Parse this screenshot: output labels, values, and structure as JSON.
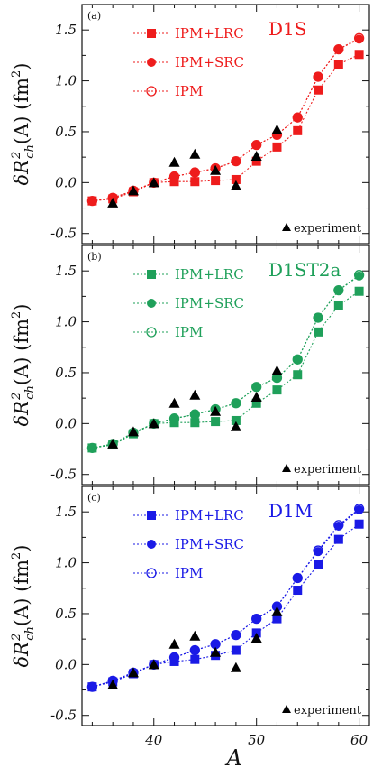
{
  "chart_data": {
    "type": "line",
    "xlabel": "A",
    "ylabel": "δR²ch(A) (fm²)",
    "ylabel_parts": {
      "delta": "δ",
      "r": "R",
      "sup": "2",
      "sub": "ch",
      "rest": "(A) (fm",
      "sup2": "2",
      "close": ")"
    },
    "xlim": [
      33,
      61
    ],
    "ylim": [
      -0.6,
      1.75
    ],
    "x_ticks": [
      40,
      50,
      60
    ],
    "y_ticks": [
      -0.5,
      0.0,
      0.5,
      1.0,
      1.5
    ],
    "y_tick_labels": [
      "-0.5",
      "0.0",
      "0.5",
      "1.0",
      "1.5"
    ],
    "experiment_label": "experiment",
    "experiment": {
      "x": [
        36,
        38,
        40,
        42,
        44,
        46,
        48,
        50,
        52
      ],
      "y": [
        -0.2,
        -0.08,
        0.0,
        0.2,
        0.28,
        0.12,
        -0.03,
        0.26,
        0.52
      ]
    },
    "panels": [
      {
        "tag": "(a)",
        "model": "D1S",
        "color": "#ee1c1c",
        "x": [
          34,
          36,
          38,
          40,
          42,
          44,
          46,
          48,
          50,
          52,
          54,
          56,
          58,
          60
        ],
        "series": [
          {
            "name": "IPM+LRC",
            "marker": "square",
            "values": [
              -0.18,
              -0.16,
              -0.09,
              0.0,
              0.01,
              0.01,
              0.02,
              0.03,
              0.21,
              0.35,
              0.51,
              0.91,
              1.16,
              1.26
            ]
          },
          {
            "name": "IPM+SRC",
            "marker": "circle",
            "values": [
              -0.18,
              -0.15,
              -0.08,
              0.0,
              0.06,
              0.1,
              0.14,
              0.21,
              0.37,
              0.47,
              0.64,
              1.04,
              1.31,
              1.41
            ]
          },
          {
            "name": "IPM",
            "marker": "open-circle",
            "values": [
              -0.18,
              -0.15,
              -0.08,
              0.0,
              0.06,
              0.1,
              0.14,
              0.21,
              0.37,
              0.47,
              0.64,
              1.04,
              1.31,
              1.42
            ]
          }
        ]
      },
      {
        "tag": "(b)",
        "model": "D1ST2a",
        "color": "#1fa05a",
        "x": [
          34,
          36,
          38,
          40,
          42,
          44,
          46,
          48,
          50,
          52,
          54,
          56,
          58,
          60
        ],
        "series": [
          {
            "name": "IPM+LRC",
            "marker": "square",
            "values": [
              -0.24,
              -0.21,
              -0.1,
              0.0,
              0.01,
              0.01,
              0.02,
              0.03,
              0.2,
              0.33,
              0.48,
              0.9,
              1.16,
              1.3
            ]
          },
          {
            "name": "IPM+SRC",
            "marker": "circle",
            "values": [
              -0.24,
              -0.2,
              -0.09,
              0.0,
              0.05,
              0.09,
              0.14,
              0.2,
              0.36,
              0.45,
              0.63,
              1.04,
              1.31,
              1.45
            ]
          },
          {
            "name": "IPM",
            "marker": "open-circle",
            "values": [
              -0.24,
              -0.2,
              -0.09,
              0.0,
              0.05,
              0.09,
              0.14,
              0.2,
              0.36,
              0.45,
              0.63,
              1.04,
              1.31,
              1.46
            ]
          }
        ]
      },
      {
        "tag": "(c)",
        "model": "D1M",
        "color": "#1a1ae6",
        "x": [
          34,
          36,
          38,
          40,
          42,
          44,
          46,
          48,
          50,
          52,
          54,
          56,
          58,
          60
        ],
        "series": [
          {
            "name": "IPM+LRC",
            "marker": "square",
            "values": [
              -0.22,
              -0.17,
              -0.09,
              0.0,
              0.03,
              0.05,
              0.09,
              0.14,
              0.31,
              0.45,
              0.73,
              0.98,
              1.23,
              1.38
            ]
          },
          {
            "name": "IPM+SRC",
            "marker": "circle",
            "values": [
              -0.22,
              -0.16,
              -0.08,
              0.0,
              0.07,
              0.14,
              0.2,
              0.29,
              0.45,
              0.57,
              0.85,
              1.11,
              1.36,
              1.52
            ]
          },
          {
            "name": "IPM",
            "marker": "open-circle",
            "values": [
              -0.22,
              -0.16,
              -0.08,
              0.0,
              0.07,
              0.14,
              0.2,
              0.29,
              0.45,
              0.57,
              0.85,
              1.12,
              1.37,
              1.53
            ]
          }
        ]
      }
    ]
  }
}
